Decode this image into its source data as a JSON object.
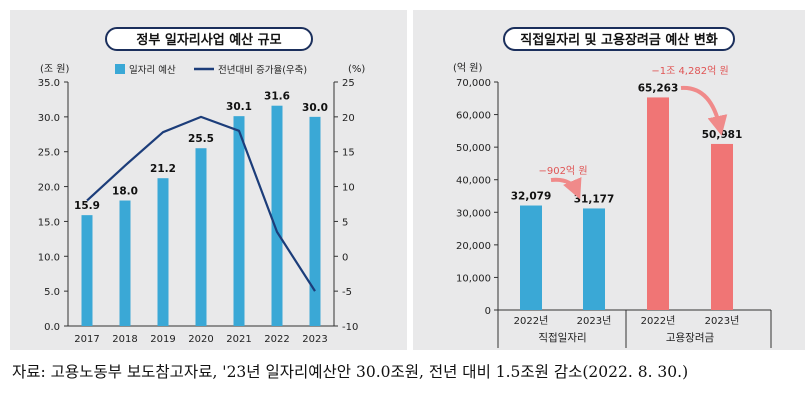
{
  "left_chart": {
    "title": "정부 일자리사업 예산 규모",
    "y_unit_left": "(조 원)",
    "y_unit_right": "(%)",
    "legend_bar": "일자리 예산",
    "legend_line": "전년대비 증가율(우축)",
    "colors": {
      "bar": "#3aa8d6",
      "line": "#1c3d7a"
    }
  },
  "right_chart": {
    "title": "직접일자리 및 고용장려금 예산 변화",
    "y_unit": "(억 원)",
    "annotation_1": "−902억 원",
    "annotation_2": "−1조 4,282억 원",
    "colors": {
      "direct": "#3aa8d6",
      "subsidy": "#f07575",
      "annotation": "#e05555",
      "arrow": "#f08a8a"
    }
  },
  "source": "자료: 고용노동부 보도참고자료, '23년 일자리예산안 30.0조원, 전년 대비 1.5조원 감소(2022. 8. 30.)",
  "chart_data": [
    {
      "type": "bar",
      "title": "정부 일자리사업 예산 규모",
      "categories": [
        "2017",
        "2018",
        "2019",
        "2020",
        "2021",
        "2022",
        "2023"
      ],
      "series": [
        {
          "name": "일자리 예산",
          "type": "bar",
          "axis": "left",
          "values": [
            15.9,
            18.0,
            21.2,
            25.5,
            30.1,
            31.6,
            30.0
          ],
          "labels": [
            "15.9",
            "18.0",
            "21.2",
            "25.5",
            "30.1",
            "31.6",
            "30.0"
          ]
        },
        {
          "name": "전년대비 증가율(우축)",
          "type": "line",
          "axis": "right",
          "values": [
            8.0,
            13.0,
            17.8,
            20.0,
            18.0,
            3.5,
            -5.0
          ]
        }
      ],
      "ylabel": "(조 원)",
      "ylim": [
        0,
        35
      ],
      "yticks": [
        "0.0",
        "5.0",
        "10.0",
        "15.0",
        "20.0",
        "25.0",
        "30.0",
        "35.0"
      ],
      "y2label": "(%)",
      "y2lim": [
        -10,
        25
      ],
      "y2ticks": [
        "-10",
        "-5",
        "0",
        "5",
        "10",
        "15",
        "20",
        "25"
      ],
      "grid": false,
      "legend": "top"
    },
    {
      "type": "bar",
      "title": "직접일자리 및 고용장려금 예산 변화",
      "groups": [
        "직접일자리",
        "고용장려금"
      ],
      "categories": [
        "2022년",
        "2023년",
        "2022년",
        "2023년"
      ],
      "values": [
        32079,
        31177,
        65263,
        50981
      ],
      "labels": [
        "32,079",
        "31,177",
        "65,263",
        "50,981"
      ],
      "ylabel": "(억 원)",
      "ylim": [
        0,
        70000
      ],
      "yticks": [
        "0",
        "10,000",
        "20,000",
        "30,000",
        "40,000",
        "50,000",
        "60,000",
        "70,000"
      ],
      "grid": false,
      "legend": "none"
    }
  ]
}
